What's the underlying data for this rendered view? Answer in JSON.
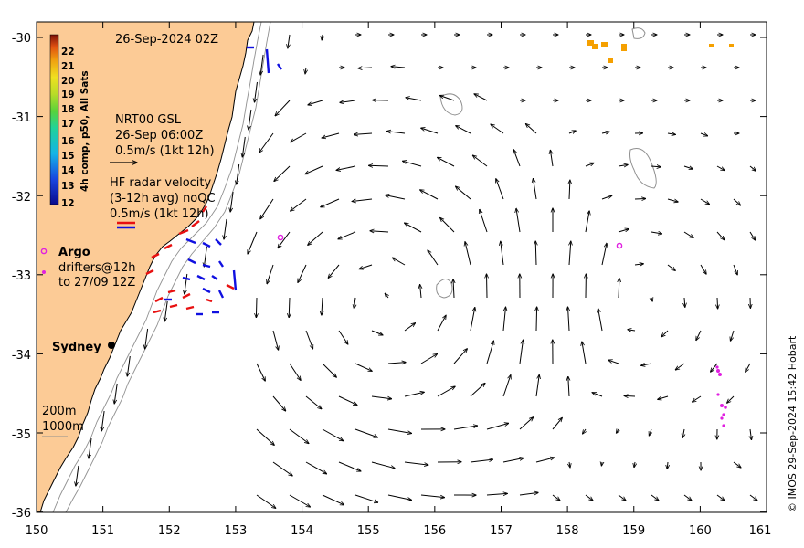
{
  "header": {
    "timestamp": "26-Sep-2024 02Z"
  },
  "colorbar": {
    "title": "4h comp, p50, All Sats",
    "ticks": [
      "22",
      "21",
      "20",
      "19",
      "18",
      "17",
      "16",
      "15",
      "14",
      "13",
      "12"
    ]
  },
  "gsl": {
    "line1": "NRT00 GSL",
    "line2": "26-Sep 06:00Z",
    "line3": "0.5m/s (1kt 12h)"
  },
  "hfradar": {
    "line1": "HF radar velocity",
    "line2": "(3-12h avg) noQC",
    "line3": "0.5m/s (1kt 12h)"
  },
  "argo": {
    "label": "Argo",
    "drifters1": "drifters@12h",
    "drifters2": "to 27/09 12Z"
  },
  "city": {
    "name": "Sydney"
  },
  "isobaths": {
    "a": "200m",
    "b": "1000m"
  },
  "axes": {
    "x_ticks": [
      "150",
      "151",
      "152",
      "153",
      "154",
      "155",
      "156",
      "157",
      "158",
      "159",
      "160",
      "161"
    ],
    "y_ticks": [
      "-30",
      "-31",
      "-32",
      "-33",
      "-34",
      "-35",
      "-36"
    ]
  },
  "credit": "© IMOS 29-Sep-2024 15:42 Hobart",
  "colors": {
    "land": "#fccb96",
    "current": "#000000",
    "radar_a": "#e81010",
    "radar_b": "#1010e0",
    "drifter": "#e020e0",
    "sst_patch": "#f5a000"
  }
}
